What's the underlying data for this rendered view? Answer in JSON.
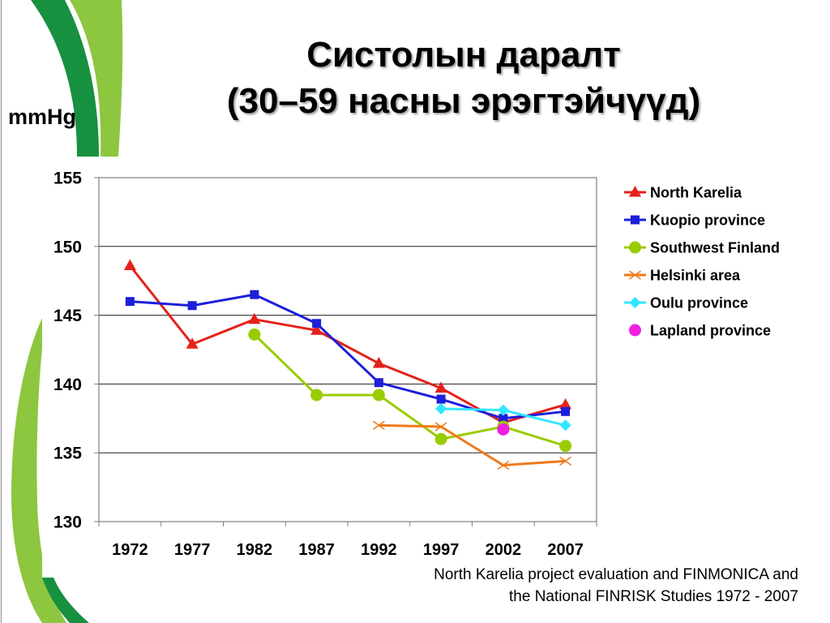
{
  "theme": {
    "dark_green": "#17903f",
    "light_green": "#8dc63f"
  },
  "source": {
    "line1": "North Karelia project evaluation and FINMONICA and",
    "line2": "the National FINRISK Studies 1972 - 2007"
  },
  "chart_data": {
    "type": "line",
    "title": "Систолын даралт",
    "subtitle": "(30–59 насны эрэгтэйчүүд)",
    "ylabel": "mmHg",
    "categories": [
      "1972",
      "1977",
      "1982",
      "1987",
      "1992",
      "1997",
      "2002",
      "2007"
    ],
    "ylim": [
      130,
      155
    ],
    "yticks": [
      130,
      135,
      140,
      145,
      150,
      155
    ],
    "grid": true,
    "legend_position": "right",
    "series": [
      {
        "name": "North Karelia",
        "color": "#e4221b",
        "marker": "triangle",
        "values": [
          148.6,
          142.9,
          144.7,
          143.9,
          141.5,
          139.7,
          137.2,
          138.5
        ]
      },
      {
        "name": "Kuopio province",
        "color": "#1d1fd9",
        "marker": "square",
        "values": [
          146.0,
          145.7,
          146.5,
          144.4,
          140.1,
          138.9,
          137.5,
          138.0
        ]
      },
      {
        "name": "Southwest Finland",
        "color": "#99cc00",
        "marker": "circle",
        "values": [
          null,
          null,
          143.6,
          139.2,
          139.2,
          136.0,
          136.9,
          135.5
        ]
      },
      {
        "name": "Helsinki area",
        "color": "#f07a1a",
        "marker": "x",
        "values": [
          null,
          null,
          null,
          null,
          137.0,
          136.9,
          134.1,
          134.4
        ]
      },
      {
        "name": "Oulu province",
        "color": "#33e6ff",
        "marker": "diamond",
        "values": [
          null,
          null,
          null,
          null,
          null,
          138.2,
          138.1,
          137.0
        ]
      },
      {
        "name": "Lapland province",
        "color": "#f01ee3",
        "marker": "circle",
        "values": [
          null,
          null,
          null,
          null,
          null,
          null,
          136.7,
          null
        ]
      }
    ]
  }
}
